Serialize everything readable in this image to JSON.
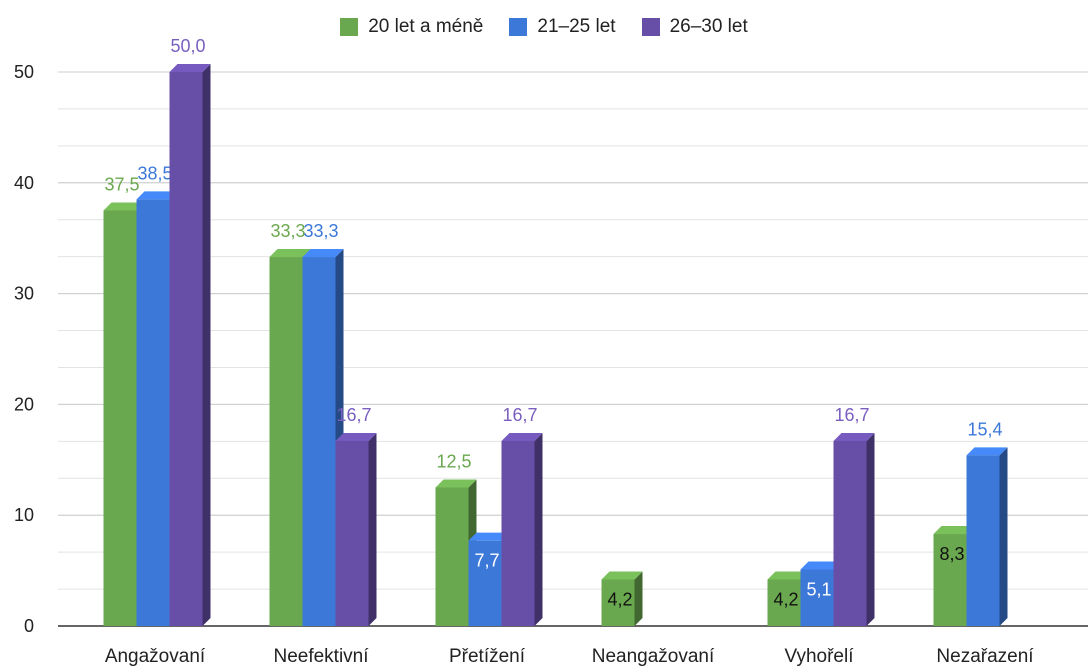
{
  "chart_data": {
    "type": "bar",
    "title": "",
    "xlabel": "",
    "ylabel": "",
    "ylim": [
      0,
      50
    ],
    "yticks": [
      0,
      10,
      20,
      30,
      40,
      50
    ],
    "grid": true,
    "legend_position": "top-center",
    "categories": [
      "Angažovaní",
      "Neefektivní",
      "Přetížení",
      "Neangažovaní",
      "Vyhořelí",
      "Nezařazení"
    ],
    "series": [
      {
        "name": "20 let a méně",
        "color": "#6aa84f",
        "values": [
          37.5,
          33.3,
          12.5,
          4.2,
          4.2,
          8.3
        ],
        "labels": [
          "37,5",
          "33,3",
          "12,5",
          "4,2",
          "4,2",
          "8,3"
        ]
      },
      {
        "name": "21–25 let",
        "color": "#3c78d8",
        "values": [
          38.5,
          33.3,
          7.7,
          null,
          5.1,
          15.4
        ],
        "labels": [
          "38,5",
          "33,3",
          "7,7",
          "",
          "5,1",
          "15,4"
        ]
      },
      {
        "name": "26–30 let",
        "color": "#674ea7",
        "values": [
          50.0,
          16.7,
          16.7,
          null,
          16.7,
          null
        ],
        "labels": [
          "50,0",
          "16,7",
          "16,7",
          "",
          "16,7",
          ""
        ]
      }
    ]
  }
}
